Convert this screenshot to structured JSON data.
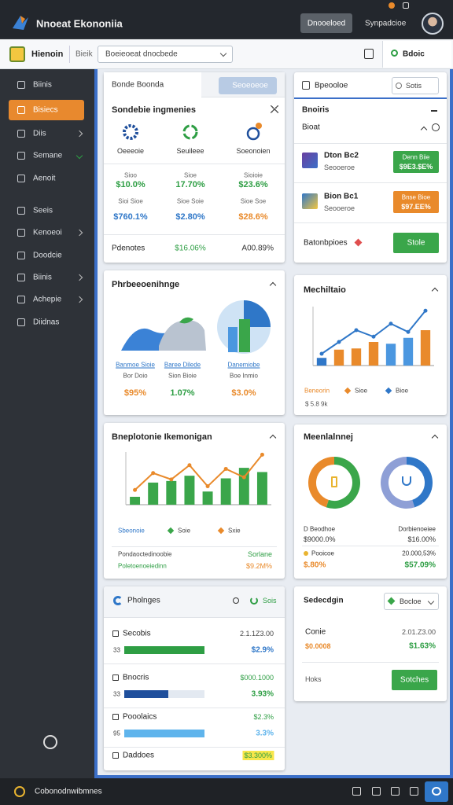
{
  "header": {
    "brand": "Nnoeat Ekononiia",
    "download": "Dnooeloed",
    "account": "Synpadcioe"
  },
  "toolbar": {
    "title": "Hienoin",
    "label": "Bieik",
    "select": "Boeieoeat dnocbede",
    "action": "Bdoic"
  },
  "sidebar": {
    "items": [
      "Biinis",
      "Bisiecs",
      "Diis",
      "Semane",
      "Aenoit",
      "Seeis",
      "Kenoeoi",
      "Doodcie",
      "Biinis",
      "Achepie",
      "Diidnas"
    ],
    "active": 1
  },
  "summary": {
    "tab": "Bonde Boonda",
    "search": "Seoeoeoe",
    "heading": "Sondebie ingmenies",
    "icons": [
      "Oeeeoie",
      "Seuileee",
      "Soeonoien"
    ],
    "rows": [
      [
        "Sioo",
        "Sioe",
        "Sioioie"
      ],
      [
        "$10.0%",
        "17.70%",
        "$23.6%"
      ],
      [
        "Sioi Sioe",
        "Sioe Soie",
        "Sioe Soe"
      ],
      [
        "$760.1%",
        "$2.80%",
        "$28.6%"
      ]
    ],
    "footer": [
      "Pdenotes",
      "$16.06%",
      "A00.89%"
    ]
  },
  "queue": {
    "title": "Bpeooloe",
    "filter": "Sotis",
    "section": "Bnoiris",
    "subsection": "Bioat",
    "items": [
      {
        "name": "Dton Bc2",
        "sub": "Seooeroe",
        "badge": "Denn Biie",
        "amount": "$9E3.$E%"
      },
      {
        "name": "Bion Bc1",
        "sub": "Seooeroe",
        "badge": "Bnse Bioe",
        "amount": "$97.EE%"
      }
    ],
    "footer": "Batonbpioes",
    "action": "Stole"
  },
  "overview": {
    "title": "Phrbeeoenihnge",
    "labels": [
      [
        "Banmoe Sioie",
        "Bor Doio",
        "$95%"
      ],
      [
        "Baree Dilede",
        "Sion Bioie",
        "1.07%"
      ],
      [
        "Danemiobe",
        "Boe Inmio",
        "$3.0%"
      ]
    ]
  },
  "chart_data": [
    {
      "type": "bar",
      "title": "Mechiltaio",
      "ylim": [
        0,
        100
      ],
      "legend_title": "Beneorin",
      "note": "$ 5.8 9k",
      "series": [
        {
          "name": "Sioe",
          "kind": "bar",
          "color": "#e98a2b",
          "colors": [
            "#2f77c8",
            "#e98a2b",
            "#e98a2b",
            "#e98a2b",
            "#4b97e0",
            "#4b97e0",
            "#e98a2b"
          ],
          "values": [
            13,
            27,
            29,
            40,
            37,
            47,
            60
          ]
        },
        {
          "name": "Bioe",
          "kind": "line",
          "color": "#2f77c8",
          "values": [
            20,
            40,
            60,
            49,
            71,
            57,
            93
          ]
        }
      ]
    },
    {
      "type": "bar",
      "title": "Bneplotonie Ikemonigan",
      "ylim": [
        0,
        100
      ],
      "legend_title": "Sbeonoie",
      "series": [
        {
          "name": "Soie",
          "kind": "bar",
          "color": "#3aa64a",
          "values": [
            15,
            42,
            45,
            55,
            25,
            50,
            70,
            62
          ]
        },
        {
          "name": "Sxie",
          "kind": "line",
          "color": "#e98a2b",
          "values": [
            28,
            60,
            48,
            75,
            35,
            68,
            52,
            95
          ]
        }
      ],
      "footer": [
        [
          "Pondaoctedinoobie",
          "Sorlane"
        ],
        [
          "Poletoenoeiedinn",
          "$9.2M%"
        ]
      ]
    },
    {
      "type": "pie",
      "title": "Meenlalnnej",
      "values": [
        55,
        45
      ],
      "colors": [
        "#3aa64a",
        "#e98a2b"
      ]
    },
    {
      "type": "pie",
      "values": [
        45,
        55
      ],
      "colors": [
        "#2f77c8",
        "#8e9fd6"
      ]
    }
  ],
  "donut_labels": [
    [
      "D Beodhoe",
      "Dorbienoeiee"
    ],
    [
      "$9000.0%",
      "$16.00%"
    ],
    [
      "Pooicoe",
      "20.000,53%"
    ],
    [
      "$.80%",
      "$57.09%"
    ]
  ],
  "changes": {
    "title": "Pholnges",
    "filter": "Sois",
    "progress_lim": [
      0,
      100
    ],
    "rows": [
      {
        "name": "Secobis",
        "date": "2.1.1Z3.00",
        "tag": "33",
        "value": "$2.9%",
        "progress": 100,
        "color": "#2e9e44"
      },
      {
        "name": "Bnocris",
        "date": "$000.1000",
        "tag": "33",
        "value": "3.93%",
        "progress": 55,
        "color": "#1f4f9c"
      },
      {
        "name": "Pooolaics",
        "date": "$2.3%",
        "tag": "95",
        "value": "3.3%",
        "progress": 100,
        "color": "#5fb4ec"
      },
      {
        "name": "Daddoes",
        "date": "$3.300%"
      }
    ]
  },
  "settings": {
    "title": "Sedecdgin",
    "select": "Bocloe",
    "name": "Conie",
    "date": "2.01.Z3.00",
    "amount": "$0.0008",
    "value": "$1.63%",
    "label": "Hoks",
    "action": "Sotches"
  },
  "footer": {
    "text": "Cobonodnwibmnes"
  }
}
